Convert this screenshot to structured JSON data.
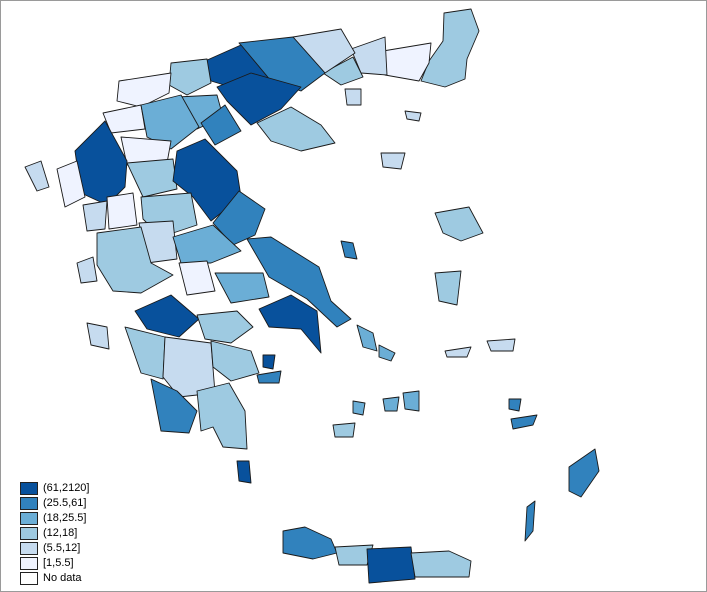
{
  "legend": {
    "items": [
      {
        "label": "(61,2120]",
        "color": "#08519c"
      },
      {
        "label": "(25.5,61]",
        "color": "#3182bd"
      },
      {
        "label": "(18,25.5]",
        "color": "#6baed6"
      },
      {
        "label": "(12,18]",
        "color": "#9ecae1"
      },
      {
        "label": "(5.5,12]",
        "color": "#c6dbef"
      },
      {
        "label": "[1,5.5]",
        "color": "#eff3ff"
      },
      {
        "label": "No data",
        "color": "#ffffff"
      }
    ]
  }
}
